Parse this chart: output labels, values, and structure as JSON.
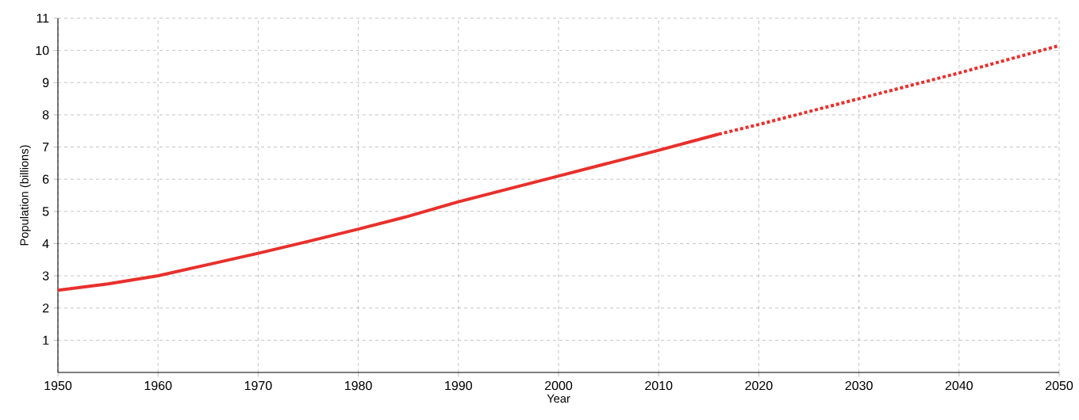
{
  "chart_data": {
    "type": "line",
    "xlabel": "Year",
    "ylabel": "Population (billions)",
    "xlim": [
      1950,
      2050
    ],
    "ylim": [
      0,
      11
    ],
    "xticks": [
      1950,
      1960,
      1970,
      1980,
      1990,
      2000,
      2010,
      2020,
      2030,
      2040,
      2050
    ],
    "yticks": [
      1,
      2,
      3,
      4,
      5,
      6,
      7,
      8,
      9,
      10,
      11
    ],
    "grid": true,
    "series": [
      {
        "color": "#e8302c",
        "line_style": "solid",
        "x": [
          1950,
          1955,
          1960,
          1965,
          1970,
          1975,
          1980,
          1985,
          1990,
          1995,
          2000,
          2005,
          2010,
          2016
        ],
        "values": [
          2.55,
          2.75,
          3.0,
          3.35,
          3.7,
          4.07,
          4.45,
          4.85,
          5.3,
          5.7,
          6.1,
          6.5,
          6.9,
          7.4
        ]
      },
      {
        "color": "#e8302c",
        "line_style": "dotted",
        "x": [
          2016,
          2020,
          2030,
          2040,
          2050
        ],
        "values": [
          7.4,
          7.7,
          8.5,
          9.3,
          10.15
        ]
      }
    ]
  }
}
